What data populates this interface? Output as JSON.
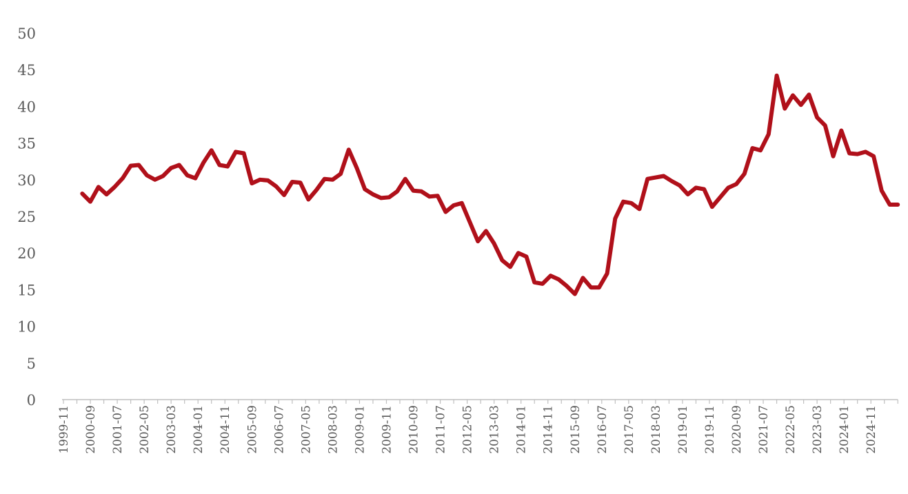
{
  "chart_data": {
    "type": "line",
    "title": "",
    "xlabel": "",
    "ylabel": "",
    "ylim": [
      0,
      50
    ],
    "y_ticks": [
      0,
      5,
      10,
      15,
      20,
      25,
      30,
      35,
      40,
      45,
      50
    ],
    "x_range": [
      "1999-11",
      "2025-09"
    ],
    "x_tick_labels": [
      "1999-11",
      "2000-09",
      "2001-07",
      "2002-05",
      "2003-03",
      "2004-01",
      "2004-11",
      "2005-09",
      "2006-07",
      "2007-05",
      "2008-03",
      "2009-01",
      "2009-11",
      "2010-09",
      "2011-07",
      "2012-05",
      "2013-03",
      "2014-01",
      "2014-11",
      "2015-09",
      "2016-07",
      "2017-05",
      "2018-03",
      "2019-01",
      "2019-11",
      "2020-09",
      "2021-07",
      "2022-05",
      "2023-03",
      "2024-01",
      "2024-11"
    ],
    "grid": false,
    "legend": "none",
    "line_color": "#b0101a",
    "series": [
      {
        "x": [
          "2000-06",
          "2000-09",
          "2000-12",
          "2001-03",
          "2001-06",
          "2001-09",
          "2001-12",
          "2002-03",
          "2002-06",
          "2002-09",
          "2002-12",
          "2003-03",
          "2003-06",
          "2003-09",
          "2003-12",
          "2004-03",
          "2004-06",
          "2004-09",
          "2004-12",
          "2005-03",
          "2005-06",
          "2005-09",
          "2005-12",
          "2006-03",
          "2006-06",
          "2006-09",
          "2006-12",
          "2007-03",
          "2007-06",
          "2007-09",
          "2007-12",
          "2008-03",
          "2008-06",
          "2008-09",
          "2008-12",
          "2009-03",
          "2009-06",
          "2009-09",
          "2009-12",
          "2010-03",
          "2010-06",
          "2010-09",
          "2010-12",
          "2011-03",
          "2011-06",
          "2011-09",
          "2011-12",
          "2012-03",
          "2012-06",
          "2012-09",
          "2012-12",
          "2013-03",
          "2013-06",
          "2013-09",
          "2013-12",
          "2014-03",
          "2014-06",
          "2014-09",
          "2014-12",
          "2015-03",
          "2015-06",
          "2015-09",
          "2015-12",
          "2016-03",
          "2016-06",
          "2016-09",
          "2016-12",
          "2017-03",
          "2017-06",
          "2017-09",
          "2017-12",
          "2018-03",
          "2018-06",
          "2018-09",
          "2018-12",
          "2019-03",
          "2019-06",
          "2019-09",
          "2019-12",
          "2020-03",
          "2020-06",
          "2020-09",
          "2020-12",
          "2021-03",
          "2021-06",
          "2021-09",
          "2021-12",
          "2022-03",
          "2022-06",
          "2022-09",
          "2022-12",
          "2023-03",
          "2023-06",
          "2023-09",
          "2023-12",
          "2024-03",
          "2024-06",
          "2024-09",
          "2024-12",
          "2025-03",
          "2025-06",
          "2025-09"
        ],
        "values": [
          28.1,
          27.0,
          29.0,
          28.0,
          29.0,
          30.2,
          31.9,
          32.0,
          30.6,
          30.0,
          30.5,
          31.6,
          32.0,
          30.6,
          30.2,
          32.3,
          34.0,
          32.0,
          31.8,
          33.8,
          33.6,
          29.5,
          30.0,
          29.9,
          29.1,
          27.9,
          29.7,
          29.6,
          27.3,
          28.6,
          30.1,
          30.0,
          30.8,
          34.1,
          31.6,
          28.7,
          28.0,
          27.5,
          27.6,
          28.4,
          30.1,
          28.5,
          28.4,
          27.7,
          27.8,
          25.6,
          26.5,
          26.8,
          24.2,
          21.6,
          23.0,
          21.3,
          19.0,
          18.1,
          20.0,
          19.5,
          16.0,
          15.8,
          16.9,
          16.4,
          15.5,
          14.4,
          16.6,
          15.3,
          15.3,
          17.2,
          24.7,
          27.0,
          26.8,
          26.0,
          30.1,
          30.3,
          30.5,
          29.8,
          29.2,
          28.0,
          28.9,
          28.7,
          26.3,
          27.6,
          28.9,
          29.4,
          30.8,
          34.3,
          34.0,
          36.2,
          44.2,
          39.7,
          41.5,
          40.2,
          41.6,
          38.5,
          37.4,
          33.2,
          36.7,
          33.6,
          33.5,
          33.8,
          33.2,
          28.5,
          26.6,
          26.6
        ]
      }
    ]
  }
}
